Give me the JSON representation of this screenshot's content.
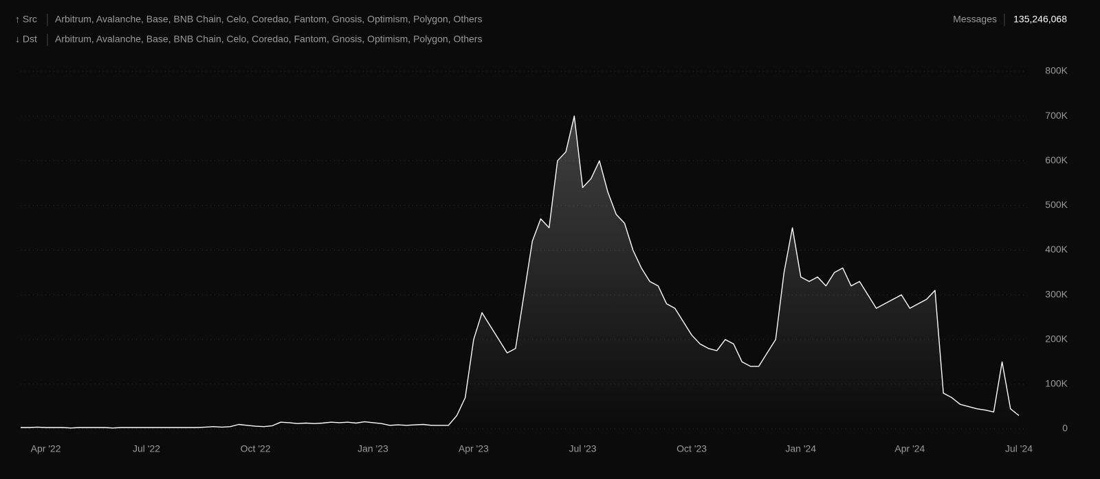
{
  "header": {
    "src_label": "↑ Src",
    "src_value": "Arbitrum, Avalanche, Base, BNB Chain, Celo, Coredao, Fantom, Gnosis, Optimism, Polygon, Others",
    "dst_label": "↓ Dst",
    "dst_value": "Arbitrum, Avalanche, Base, BNB Chain, Celo, Coredao, Fantom, Gnosis, Optimism, Polygon, Others",
    "metric_label": "Messages",
    "metric_value": "135,246,068"
  },
  "chart_data": {
    "type": "area",
    "color": "#ffffff",
    "grid": true,
    "categories": [
      null,
      null,
      null,
      "Apr '22",
      null,
      null,
      null,
      null,
      null,
      null,
      null,
      null,
      null,
      null,
      null,
      "Jul '22",
      null,
      null,
      null,
      null,
      null,
      null,
      null,
      null,
      null,
      null,
      null,
      null,
      "Oct '22",
      null,
      null,
      null,
      null,
      null,
      null,
      null,
      null,
      null,
      null,
      null,
      null,
      null,
      "Jan '23",
      null,
      null,
      null,
      null,
      null,
      null,
      null,
      null,
      null,
      null,
      null,
      "Apr '23",
      null,
      null,
      null,
      null,
      null,
      null,
      null,
      null,
      null,
      null,
      null,
      null,
      "Jul '23",
      null,
      null,
      null,
      null,
      null,
      null,
      null,
      null,
      null,
      null,
      null,
      null,
      "Oct '23",
      null,
      null,
      null,
      null,
      null,
      null,
      null,
      null,
      null,
      null,
      null,
      null,
      "Jan '24",
      null,
      null,
      null,
      null,
      null,
      null,
      null,
      null,
      null,
      null,
      null,
      null,
      "Apr '24",
      null,
      null,
      null,
      null,
      null,
      null,
      null,
      null,
      null,
      null,
      null,
      null,
      "Jul '24"
    ],
    "values": [
      3000,
      3000,
      4000,
      3000,
      3000,
      3000,
      2000,
      3000,
      3000,
      3000,
      3000,
      2000,
      3000,
      3000,
      3000,
      3000,
      3000,
      3000,
      3000,
      3000,
      3000,
      3000,
      4000,
      5000,
      4000,
      5000,
      10000,
      8000,
      6000,
      5000,
      7000,
      15000,
      14000,
      12000,
      13000,
      12000,
      13000,
      15000,
      14000,
      15000,
      13000,
      16000,
      14000,
      12000,
      8000,
      9000,
      8000,
      9000,
      10000,
      8000,
      8000,
      8000,
      30000,
      70000,
      200000,
      260000,
      230000,
      200000,
      170000,
      180000,
      300000,
      420000,
      470000,
      450000,
      600000,
      620000,
      700000,
      540000,
      560000,
      600000,
      530000,
      480000,
      460000,
      400000,
      360000,
      330000,
      320000,
      280000,
      270000,
      240000,
      210000,
      190000,
      180000,
      175000,
      200000,
      190000,
      150000,
      140000,
      140000,
      170000,
      200000,
      350000,
      450000,
      340000,
      330000,
      340000,
      320000,
      350000,
      360000,
      320000,
      330000,
      300000,
      270000,
      280000,
      290000,
      300000,
      270000,
      280000,
      290000,
      310000,
      80000,
      70000,
      55000,
      50000,
      45000,
      42000,
      38000,
      150000,
      45000,
      30000
    ],
    "ylim": [
      0,
      800000
    ],
    "yticks": [
      0,
      {
        "value": 100000,
        "label": "100K"
      },
      {
        "value": 200000,
        "label": "200K"
      },
      {
        "value": 300000,
        "label": "300K"
      },
      {
        "value": 400000,
        "label": "400K"
      },
      {
        "value": 500000,
        "label": "500K"
      },
      {
        "value": 600000,
        "label": "600K"
      },
      {
        "value": 700000,
        "label": "700K"
      },
      {
        "value": 800000,
        "label": "800K"
      }
    ]
  }
}
